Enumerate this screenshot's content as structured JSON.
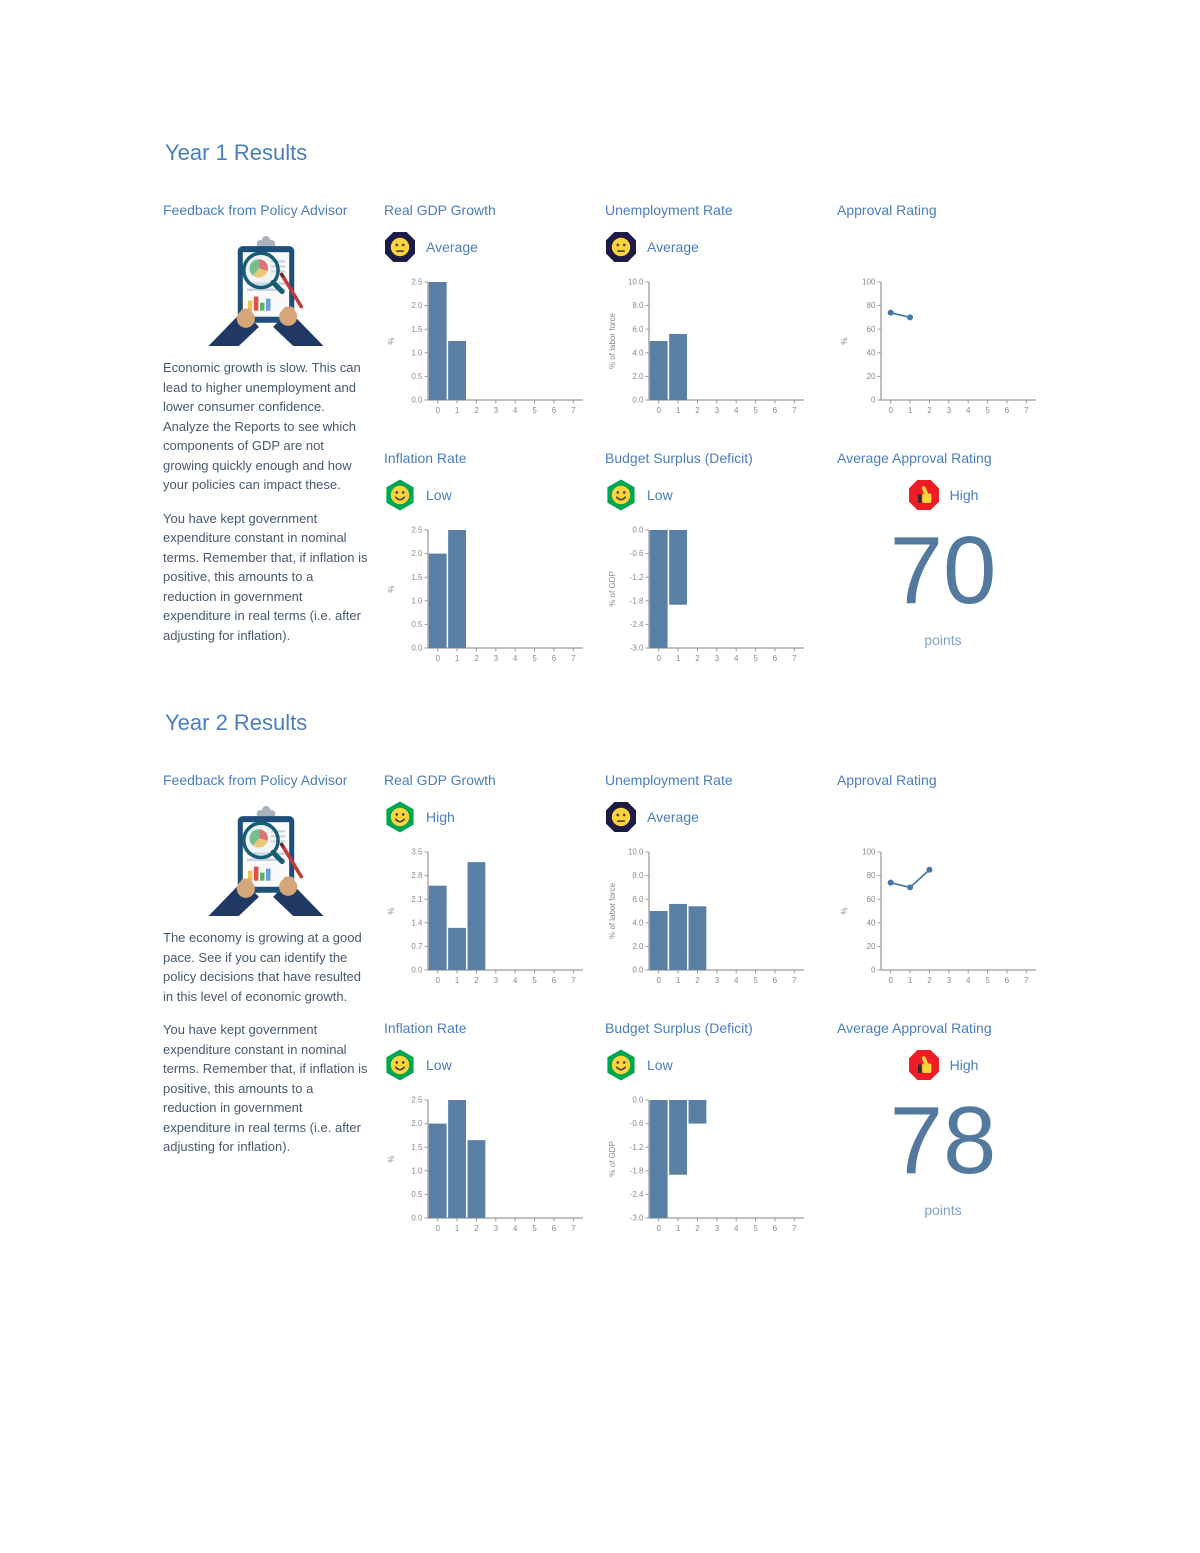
{
  "colors": {
    "heading": "#4a7ebd",
    "card_title": "#4a7ebd",
    "bar": "#5a7fa5",
    "line": "#4678a8",
    "axis": "#9a9a9a",
    "tick_text": "#8a8a8a",
    "big_number": "#54799e",
    "points_text": "#7fa3c8",
    "body_text": "#475a70",
    "badge_navy": "#1c1c45",
    "badge_green": "#00a651",
    "badge_red": "#ee1c25",
    "face_yellow": "#ffd43b"
  },
  "chart_data": [
    {
      "id": "y1-gdp",
      "type": "bar",
      "title": "Real GDP Growth",
      "x": [
        "0",
        "1",
        "2",
        "3",
        "4",
        "5",
        "6",
        "7"
      ],
      "values": [
        2.5,
        1.25
      ],
      "ylabel": "%",
      "ylim": [
        0,
        2.5
      ],
      "yticks": [
        [
          0,
          "0.0"
        ],
        [
          0.5,
          "0.5"
        ],
        [
          1,
          "1.0"
        ],
        [
          1.5,
          "1.5"
        ],
        [
          2,
          "2.0"
        ],
        [
          2.5,
          "2.5"
        ]
      ]
    },
    {
      "id": "y1-unemployment",
      "type": "bar",
      "title": "Unemployment Rate",
      "x": [
        "0",
        "1",
        "2",
        "3",
        "4",
        "5",
        "6",
        "7"
      ],
      "values": [
        5.0,
        5.6
      ],
      "ylabel": "% of labor force",
      "ylim": [
        0,
        10
      ],
      "yticks": [
        [
          0,
          "0.0"
        ],
        [
          2,
          "2.0"
        ],
        [
          4,
          "4.0"
        ],
        [
          6,
          "6.0"
        ],
        [
          8,
          "8.0"
        ],
        [
          10,
          "10.0"
        ]
      ]
    },
    {
      "id": "y1-approval",
      "type": "line",
      "title": "Approval Rating",
      "x": [
        "0",
        "1",
        "2",
        "3",
        "4",
        "5",
        "6",
        "7"
      ],
      "values": [
        74,
        70
      ],
      "ylabel": "%",
      "ylim": [
        0,
        100
      ],
      "yticks": [
        [
          0,
          "0"
        ],
        [
          20,
          "20"
        ],
        [
          40,
          "40"
        ],
        [
          60,
          "60"
        ],
        [
          80,
          "80"
        ],
        [
          100,
          "100"
        ]
      ]
    },
    {
      "id": "y1-inflation",
      "type": "bar",
      "title": "Inflation Rate",
      "x": [
        "0",
        "1",
        "2",
        "3",
        "4",
        "5",
        "6",
        "7"
      ],
      "values": [
        2.0,
        2.5
      ],
      "ylabel": "%",
      "ylim": [
        0,
        2.5
      ],
      "yticks": [
        [
          0,
          "0.0"
        ],
        [
          0.5,
          "0.5"
        ],
        [
          1,
          "1.0"
        ],
        [
          1.5,
          "1.5"
        ],
        [
          2,
          "2.0"
        ],
        [
          2.5,
          "2.5"
        ]
      ]
    },
    {
      "id": "y1-budget",
      "type": "bar",
      "title": "Budget Surplus (Deficit)",
      "x": [
        "0",
        "1",
        "2",
        "3",
        "4",
        "5",
        "6",
        "7"
      ],
      "values": [
        -3.0,
        -1.9
      ],
      "ylabel": "% of GDP",
      "ylim": [
        -3,
        0
      ],
      "yticks": [
        [
          0,
          "0.0"
        ],
        [
          -0.6,
          "-0.6"
        ],
        [
          -1.2,
          "-1.2"
        ],
        [
          -1.8,
          "-1.8"
        ],
        [
          -2.4,
          "-2.4"
        ],
        [
          -3,
          "-3.0"
        ]
      ]
    },
    {
      "id": "y2-gdp",
      "type": "bar",
      "title": "Real GDP Growth",
      "x": [
        "0",
        "1",
        "2",
        "3",
        "4",
        "5",
        "6",
        "7"
      ],
      "values": [
        2.5,
        1.25,
        3.2
      ],
      "ylabel": "%",
      "ylim": [
        0,
        3.5
      ],
      "yticks": [
        [
          0,
          "0.0"
        ],
        [
          0.7,
          "0.7"
        ],
        [
          1.4,
          "1.4"
        ],
        [
          2.1,
          "2.1"
        ],
        [
          2.8,
          "2.8"
        ],
        [
          3.5,
          "3.5"
        ]
      ]
    },
    {
      "id": "y2-unemployment",
      "type": "bar",
      "title": "Unemployment Rate",
      "x": [
        "0",
        "1",
        "2",
        "3",
        "4",
        "5",
        "6",
        "7"
      ],
      "values": [
        5.0,
        5.6,
        5.4
      ],
      "ylabel": "% of labor force",
      "ylim": [
        0,
        10
      ],
      "yticks": [
        [
          0,
          "0.0"
        ],
        [
          2,
          "2.0"
        ],
        [
          4,
          "4.0"
        ],
        [
          6,
          "6.0"
        ],
        [
          8,
          "8.0"
        ],
        [
          10,
          "10.0"
        ]
      ]
    },
    {
      "id": "y2-approval",
      "type": "line",
      "title": "Approval Rating",
      "x": [
        "0",
        "1",
        "2",
        "3",
        "4",
        "5",
        "6",
        "7"
      ],
      "values": [
        74,
        70,
        85
      ],
      "ylabel": "%",
      "ylim": [
        0,
        100
      ],
      "yticks": [
        [
          0,
          "0"
        ],
        [
          20,
          "20"
        ],
        [
          40,
          "40"
        ],
        [
          60,
          "60"
        ],
        [
          80,
          "80"
        ],
        [
          100,
          "100"
        ]
      ]
    },
    {
      "id": "y2-inflation",
      "type": "bar",
      "title": "Inflation Rate",
      "x": [
        "0",
        "1",
        "2",
        "3",
        "4",
        "5",
        "6",
        "7"
      ],
      "values": [
        2.0,
        2.5,
        1.65
      ],
      "ylabel": "%",
      "ylim": [
        0,
        2.5
      ],
      "yticks": [
        [
          0,
          "0.0"
        ],
        [
          0.5,
          "0.5"
        ],
        [
          1,
          "1.0"
        ],
        [
          1.5,
          "1.5"
        ],
        [
          2,
          "2.0"
        ],
        [
          2.5,
          "2.5"
        ]
      ]
    },
    {
      "id": "y2-budget",
      "type": "bar",
      "title": "Budget Surplus (Deficit)",
      "x": [
        "0",
        "1",
        "2",
        "3",
        "4",
        "5",
        "6",
        "7"
      ],
      "values": [
        -3.0,
        -1.9,
        -0.6
      ],
      "ylabel": "% of GDP",
      "ylim": [
        -3,
        0
      ],
      "yticks": [
        [
          0,
          "0.0"
        ],
        [
          -0.6,
          "-0.6"
        ],
        [
          -1.2,
          "-1.2"
        ],
        [
          -1.8,
          "-1.8"
        ],
        [
          -2.4,
          "-2.4"
        ],
        [
          -3,
          "-3.0"
        ]
      ]
    }
  ],
  "sections": [
    {
      "heading": "Year 1 Results",
      "gdp": {
        "title": "Real GDP Growth",
        "badge": {
          "label": "Average",
          "shape": "octagon",
          "color": "#1c1c45",
          "face": "neutral"
        }
      },
      "unemployment": {
        "title": "Unemployment Rate",
        "badge": {
          "label": "Average",
          "shape": "octagon",
          "color": "#1c1c45",
          "face": "neutral"
        }
      },
      "approval": {
        "title": "Approval Rating"
      },
      "feedback": {
        "title": "Feedback from Policy Advisor",
        "paragraphs": [
          "Economic growth is slow. This can lead to higher unemployment and lower consumer confidence. Analyze the Reports to see which components of GDP are not growing quickly enough and how your policies can impact these.",
          "You have kept government expenditure constant in nominal terms. Remember that, if inflation is positive, this amounts to a reduction in government expenditure in real terms (i.e. after adjusting for inflation)."
        ]
      },
      "inflation": {
        "title": "Inflation Rate",
        "badge": {
          "label": "Low",
          "shape": "hexagon",
          "color": "#00a651",
          "face": "smile"
        }
      },
      "budget": {
        "title": "Budget Surplus (Deficit)",
        "badge": {
          "label": "Low",
          "shape": "hexagon",
          "color": "#00a651",
          "face": "smile"
        }
      },
      "avg_approval": {
        "title": "Average Approval Rating",
        "badge": {
          "label": "High",
          "shape": "octagon",
          "color": "#ee1c25",
          "face": "thumbs-up"
        },
        "value": "70",
        "unit": "points"
      }
    },
    {
      "heading": "Year 2 Results",
      "gdp": {
        "title": "Real GDP Growth",
        "badge": {
          "label": "High",
          "shape": "hexagon",
          "color": "#00a651",
          "face": "smile"
        }
      },
      "unemployment": {
        "title": "Unemployment Rate",
        "badge": {
          "label": "Average",
          "shape": "octagon",
          "color": "#1c1c45",
          "face": "neutral"
        }
      },
      "approval": {
        "title": "Approval Rating"
      },
      "feedback": {
        "title": "Feedback from Policy Advisor",
        "paragraphs": [
          "The economy is growing at a good pace. See if you can identify the policy decisions that have resulted in this level of economic growth.",
          "You have kept government expenditure constant in nominal terms. Remember that, if inflation is positive, this amounts to a reduction in government expenditure in real terms (i.e. after adjusting for inflation)."
        ]
      },
      "inflation": {
        "title": "Inflation Rate",
        "badge": {
          "label": "Low",
          "shape": "hexagon",
          "color": "#00a651",
          "face": "smile"
        }
      },
      "budget": {
        "title": "Budget Surplus (Deficit)",
        "badge": {
          "label": "Low",
          "shape": "hexagon",
          "color": "#00a651",
          "face": "smile"
        }
      },
      "avg_approval": {
        "title": "Average Approval Rating",
        "badge": {
          "label": "High",
          "shape": "octagon",
          "color": "#ee1c25",
          "face": "thumbs-up"
        },
        "value": "78",
        "unit": "points"
      }
    }
  ]
}
